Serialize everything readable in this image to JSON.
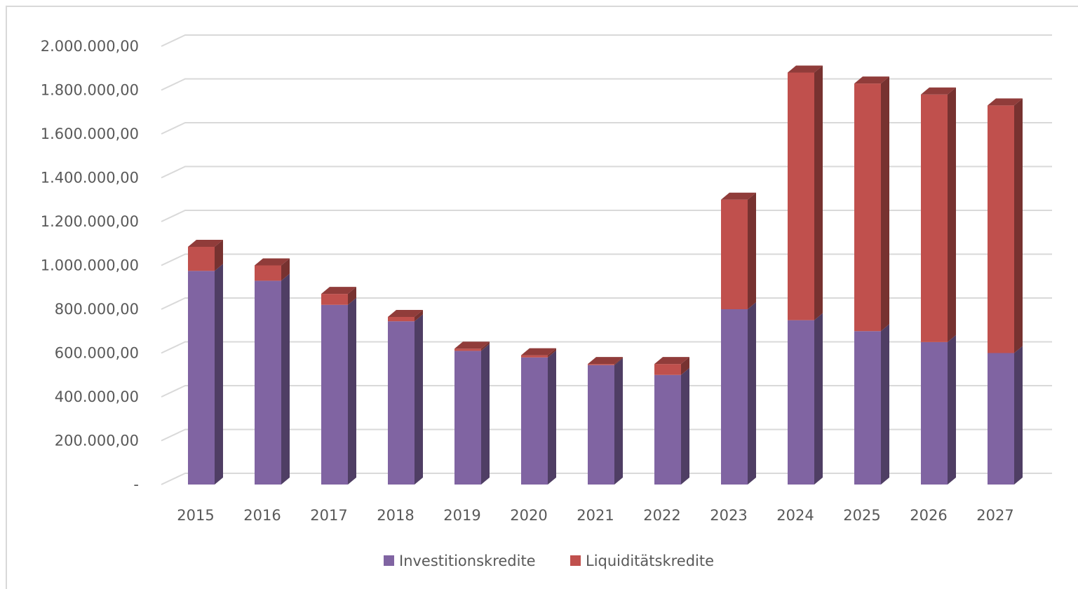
{
  "chart_data": {
    "type": "bar",
    "stacked": true,
    "three_d": true,
    "categories": [
      "2015",
      "2016",
      "2017",
      "2018",
      "2019",
      "2020",
      "2021",
      "2022",
      "2023",
      "2024",
      "2025",
      "2026",
      "2027"
    ],
    "series": [
      {
        "name": "Investitionskredite",
        "color": "#8064a2",
        "values": [
          975000,
          930000,
          820000,
          745000,
          610000,
          580000,
          545000,
          500000,
          800000,
          750000,
          700000,
          650000,
          600000
        ]
      },
      {
        "name": "Liquiditätskredite",
        "color": "#c0504d",
        "values": [
          110000,
          70000,
          50000,
          20000,
          10000,
          10000,
          5000,
          50000,
          500000,
          1130000,
          1130000,
          1130000,
          1130000
        ]
      }
    ],
    "yticks": [
      "-",
      "200.000,00",
      "400.000,00",
      "600.000,00",
      "800.000,00",
      "1.000.000,00",
      "1.200.000,00",
      "1.400.000,00",
      "1.600.000,00",
      "1.800.000,00",
      "2.000.000,00"
    ],
    "ylim": [
      0,
      2000000
    ],
    "grid": true,
    "legend_position": "bottom"
  }
}
